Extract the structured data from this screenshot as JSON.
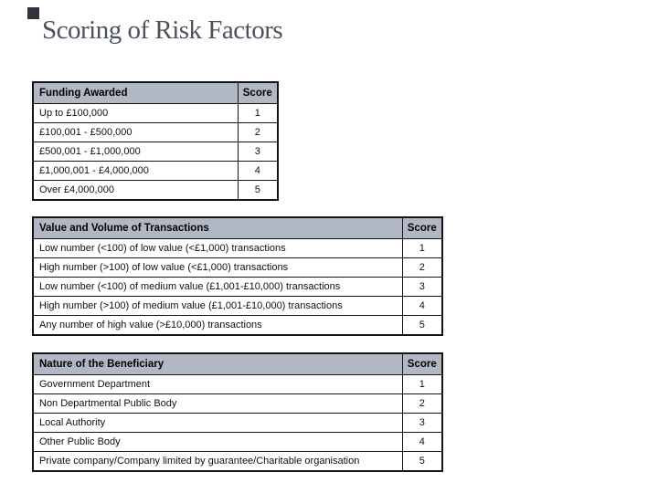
{
  "slide": {
    "title": "Scoring of Risk Factors"
  },
  "colors": {
    "header_bg": "#b2b8c3",
    "title_color": "#4b525e",
    "table_border": "#141414",
    "accent_square": "#2e333c",
    "background": "#ffffff"
  },
  "tables": [
    {
      "header": "Funding Awarded",
      "score_header": "Score",
      "rows": [
        {
          "label": "Up to £100,000",
          "score": "1"
        },
        {
          "label": "£100,001 - £500,000",
          "score": "2"
        },
        {
          "label": "£500,001 - £1,000,000",
          "score": "3"
        },
        {
          "label": "£1,000,001 - £4,000,000",
          "score": "4"
        },
        {
          "label": "Over £4,000,000",
          "score": "5"
        }
      ]
    },
    {
      "header": "Value and Volume of Transactions",
      "score_header": "Score",
      "rows": [
        {
          "label": "Low number (<100) of low value (<£1,000) transactions",
          "score": "1"
        },
        {
          "label": "High number (>100) of low value (<£1,000) transactions",
          "score": "2"
        },
        {
          "label": "Low number (<100) of medium value (£1,001-£10,000) transactions",
          "score": "3"
        },
        {
          "label": "High number (>100) of medium value (£1,001-£10,000) transactions",
          "score": "4"
        },
        {
          "label": "Any number of high value (>£10,000) transactions",
          "score": "5"
        }
      ]
    },
    {
      "header": "Nature of the Beneficiary",
      "score_header": "Score",
      "rows": [
        {
          "label": "Government Department",
          "score": "1"
        },
        {
          "label": "Non Departmental Public Body",
          "score": "2"
        },
        {
          "label": "Local Authority",
          "score": "3"
        },
        {
          "label": "Other Public Body",
          "score": "4"
        },
        {
          "label": "Private company/Company limited by guarantee/Charitable organisation",
          "score": "5"
        }
      ]
    }
  ]
}
